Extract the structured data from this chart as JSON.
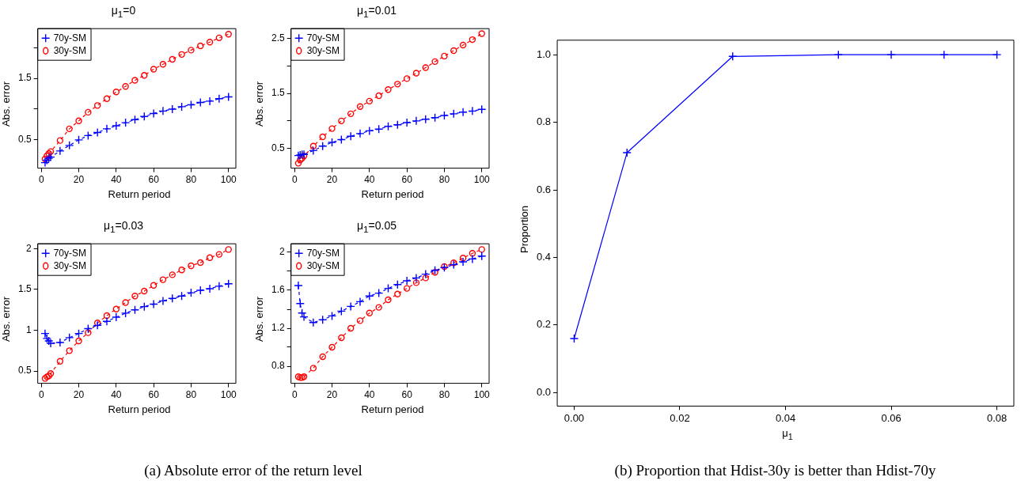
{
  "chart_data": [
    {
      "type": "line",
      "title": "μ$_{1}$=0",
      "xlabel": "Return period",
      "ylabel": "Abs. error",
      "xlim": [
        -1.92,
        103.92
      ],
      "xticks": [
        0,
        20,
        40,
        60,
        80,
        100
      ],
      "ylim": [
        0.04,
        2.31
      ],
      "yticks": [
        0.5,
        {
          "value": 1.0,
          "label": null
        },
        1.5,
        {
          "value": 2.0,
          "label": null
        }
      ],
      "grid": false,
      "legend": "top left",
      "line_style": "dashed",
      "annotations": [
        "(a) Absolute error of the return level"
      ],
      "x": [
        2,
        3,
        4,
        5,
        10,
        15,
        20,
        25,
        30,
        35,
        40,
        45,
        50,
        55,
        60,
        65,
        70,
        75,
        80,
        85,
        90,
        95,
        100
      ],
      "series": [
        {
          "name": "70y-SM",
          "color": "#0000ff",
          "marker": "cross",
          "values": [
            0.13,
            0.17,
            0.2,
            0.22,
            0.32,
            0.41,
            0.5,
            0.57,
            0.62,
            0.68,
            0.73,
            0.78,
            0.83,
            0.88,
            0.93,
            0.97,
            1.0,
            1.04,
            1.07,
            1.11,
            1.13,
            1.17,
            1.2
          ]
        },
        {
          "name": "30y-SM",
          "color": "#ff0000",
          "marker": "circle",
          "values": [
            0.19,
            0.24,
            0.28,
            0.31,
            0.49,
            0.68,
            0.81,
            0.95,
            1.06,
            1.17,
            1.28,
            1.37,
            1.47,
            1.55,
            1.65,
            1.73,
            1.81,
            1.89,
            1.96,
            2.03,
            2.09,
            2.16,
            2.22
          ]
        }
      ]
    },
    {
      "type": "line",
      "title": "μ$_{1}$=0.01",
      "xlabel": "Return period",
      "ylabel": "Abs. error",
      "xlim": [
        -1.92,
        103.92
      ],
      "xticks": [
        0,
        20,
        40,
        60,
        80,
        100
      ],
      "ylim": [
        0.14,
        2.68
      ],
      "yticks": [
        0.5,
        {
          "value": 1.0,
          "label": null
        },
        1.5,
        {
          "value": 2.0,
          "label": null
        },
        2.5
      ],
      "grid": false,
      "legend": "top left",
      "line_style": "dashed",
      "x": [
        2,
        3,
        4,
        5,
        10,
        15,
        20,
        25,
        30,
        35,
        40,
        45,
        50,
        55,
        60,
        65,
        70,
        75,
        80,
        85,
        90,
        95,
        100
      ],
      "series": [
        {
          "name": "70y-SM",
          "color": "#0000ff",
          "marker": "cross",
          "values": [
            0.37,
            0.38,
            0.39,
            0.39,
            0.46,
            0.54,
            0.61,
            0.66,
            0.72,
            0.77,
            0.82,
            0.85,
            0.9,
            0.93,
            0.97,
            1.0,
            1.03,
            1.06,
            1.1,
            1.13,
            1.16,
            1.18,
            1.21
          ]
        },
        {
          "name": "30y-SM",
          "color": "#ff0000",
          "marker": "circle",
          "values": [
            0.23,
            0.29,
            0.32,
            0.36,
            0.54,
            0.71,
            0.86,
            1.0,
            1.13,
            1.26,
            1.36,
            1.46,
            1.57,
            1.67,
            1.77,
            1.87,
            1.97,
            2.08,
            2.18,
            2.28,
            2.38,
            2.48,
            2.59
          ]
        }
      ]
    },
    {
      "type": "line",
      "title": "μ$_{1}$=0.03",
      "xlabel": "Return period",
      "ylabel": "Abs. error",
      "xlim": [
        -1.92,
        103.92
      ],
      "xticks": [
        0,
        20,
        40,
        60,
        80,
        100
      ],
      "ylim": [
        0.35,
        2.06
      ],
      "yticks": [
        0.5,
        1.0,
        1.5,
        2.0
      ],
      "grid": false,
      "legend": "top left",
      "line_style": "dashed",
      "x": [
        2,
        3,
        4,
        5,
        10,
        15,
        20,
        25,
        30,
        35,
        40,
        45,
        50,
        55,
        60,
        65,
        70,
        75,
        80,
        85,
        90,
        95,
        100
      ],
      "series": [
        {
          "name": "70y-SM",
          "color": "#0000ff",
          "marker": "cross",
          "values": [
            0.96,
            0.9,
            0.87,
            0.84,
            0.85,
            0.91,
            0.96,
            1.02,
            1.06,
            1.11,
            1.16,
            1.21,
            1.25,
            1.29,
            1.32,
            1.36,
            1.39,
            1.42,
            1.46,
            1.49,
            1.51,
            1.54,
            1.57
          ]
        },
        {
          "name": "30y-SM",
          "color": "#ff0000",
          "marker": "circle",
          "values": [
            0.41,
            0.43,
            0.44,
            0.47,
            0.62,
            0.75,
            0.87,
            0.97,
            1.09,
            1.18,
            1.26,
            1.34,
            1.42,
            1.48,
            1.55,
            1.62,
            1.68,
            1.74,
            1.79,
            1.83,
            1.89,
            1.93,
            1.99
          ]
        }
      ]
    },
    {
      "type": "line",
      "title": "μ$_{1}$=0.05",
      "xlabel": "Return period",
      "ylabel": "Abs. error",
      "xlim": [
        -1.92,
        103.92
      ],
      "xticks": [
        0,
        20,
        40,
        60,
        80,
        100
      ],
      "ylim": [
        0.62,
        2.09
      ],
      "yticks": [
        0.8,
        {
          "value": 1.0,
          "label": null
        },
        1.2,
        {
          "value": 1.4,
          "label": null
        },
        1.6,
        {
          "value": 1.8,
          "label": null
        },
        2.0
      ],
      "grid": false,
      "legend": "top left",
      "line_style": "dashed",
      "x": [
        2,
        3,
        4,
        5,
        10,
        15,
        20,
        25,
        30,
        35,
        40,
        45,
        50,
        55,
        60,
        65,
        70,
        75,
        80,
        85,
        90,
        95,
        100
      ],
      "series": [
        {
          "name": "70y-SM",
          "color": "#0000ff",
          "marker": "cross",
          "values": [
            1.65,
            1.46,
            1.36,
            1.32,
            1.26,
            1.29,
            1.33,
            1.38,
            1.43,
            1.48,
            1.54,
            1.57,
            1.62,
            1.66,
            1.7,
            1.73,
            1.77,
            1.81,
            1.84,
            1.87,
            1.9,
            1.93,
            1.96
          ]
        },
        {
          "name": "30y-SM",
          "color": "#ff0000",
          "marker": "circle",
          "values": [
            0.69,
            0.68,
            0.68,
            0.69,
            0.78,
            0.9,
            1.0,
            1.1,
            1.2,
            1.28,
            1.36,
            1.42,
            1.5,
            1.56,
            1.62,
            1.68,
            1.73,
            1.79,
            1.85,
            1.89,
            1.94,
            1.99,
            2.03
          ]
        }
      ]
    },
    {
      "type": "line",
      "xlabel": "μ$_{1}$",
      "ylabel": "Proportion",
      "xlim": [
        -0.0032,
        0.0832
      ],
      "xticks": [
        {
          "value": 0,
          "label": "0.00"
        },
        0.02,
        0.04,
        0.06,
        0.08
      ],
      "ylim": [
        -0.04,
        1.043
      ],
      "yticks": [
        {
          "value": 0,
          "label": "0.0"
        },
        0.2,
        0.4,
        0.6,
        0.8,
        {
          "value": 1,
          "label": "1.0"
        }
      ],
      "grid": false,
      "line_style": "solid",
      "annotations": [
        "(b) Proportion that Hdist-30y is better than Hdist-70y"
      ],
      "x": [
        0,
        0.01,
        0.03,
        0.05,
        0.06,
        0.07,
        0.08
      ],
      "series": [
        {
          "color": "#0000ff",
          "marker": "cross",
          "values": [
            0.16,
            0.71,
            0.995,
            1.0,
            1.0,
            1.0,
            1.0
          ]
        }
      ]
    }
  ]
}
